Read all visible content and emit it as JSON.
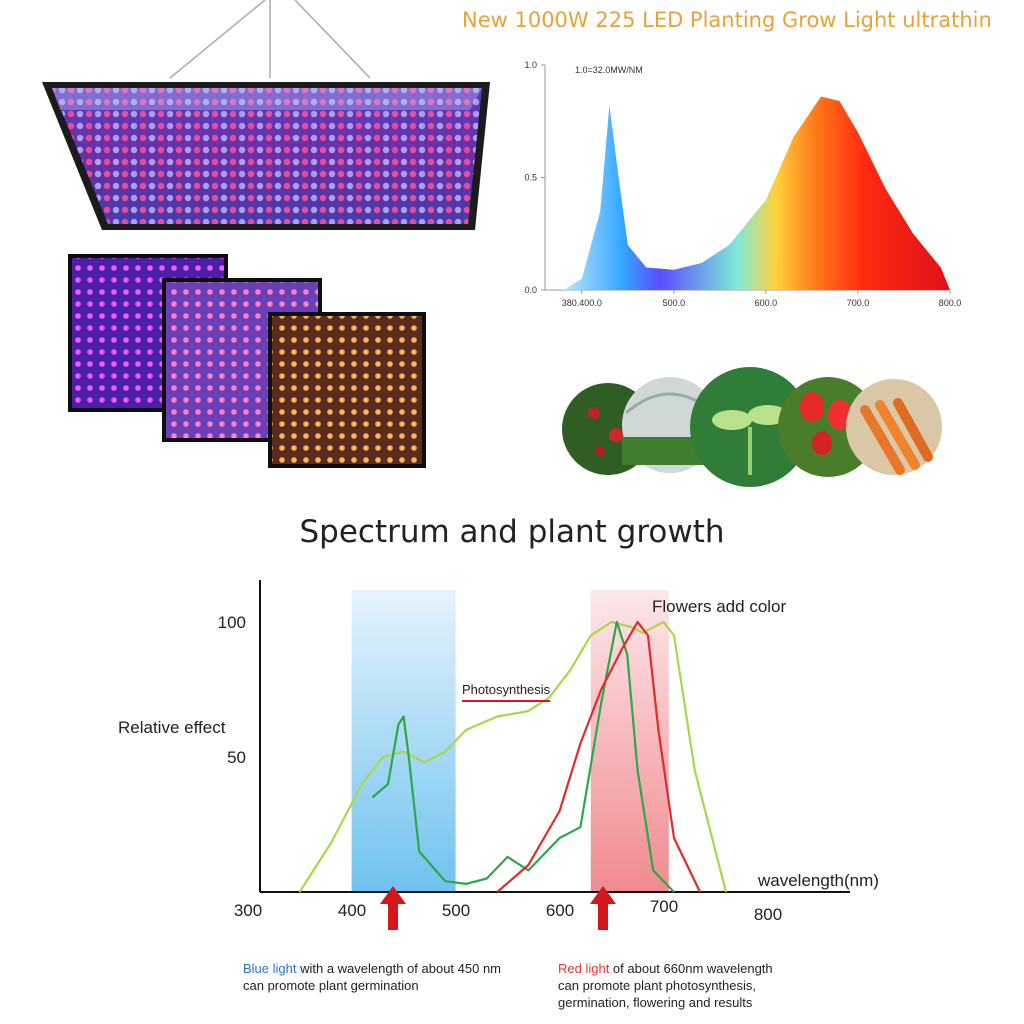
{
  "header": {
    "title": "New 1000W 225 LED Planting Grow Light  ultrathin"
  },
  "chart_data": [
    {
      "type": "area",
      "annotation": "1.0=32.0MW/NM",
      "y_ticks": [
        "1.0",
        "0.5",
        "0.0"
      ],
      "x_ticks": [
        "380.400.0",
        "500.0",
        "600.0",
        "700.0",
        "800.0"
      ],
      "x": [
        380,
        400,
        420,
        430,
        440,
        450,
        470,
        500,
        530,
        560,
        600,
        630,
        660,
        680,
        700,
        730,
        760,
        790,
        800
      ],
      "values": [
        0.0,
        0.05,
        0.35,
        0.82,
        0.5,
        0.2,
        0.1,
        0.09,
        0.12,
        0.2,
        0.4,
        0.68,
        0.86,
        0.84,
        0.7,
        0.45,
        0.25,
        0.1,
        0.0
      ],
      "ylim": [
        0,
        1.0
      ],
      "xlim": [
        360,
        800
      ]
    },
    {
      "type": "line",
      "title": "Spectrum and plant growth",
      "ylabel": "Relative effect",
      "xlabel": "wavelength(nm)",
      "y_ticks": [
        "100",
        "50"
      ],
      "x_ticks": [
        "300",
        "400",
        "500",
        "600",
        "700",
        "800"
      ],
      "annotations": [
        "Flowers add color",
        "Photosynthesis"
      ],
      "ylim": [
        0,
        100
      ],
      "xlim": [
        300,
        850
      ],
      "series": [
        {
          "values_x": [
            340,
            370,
            400,
            420,
            440,
            460,
            480,
            500,
            530,
            560,
            580,
            600,
            620,
            640,
            660,
            670,
            690,
            700,
            720,
            750
          ],
          "values": [
            0,
            18,
            40,
            50,
            52,
            48,
            52,
            60,
            65,
            67,
            72,
            82,
            95,
            100,
            98,
            96,
            100,
            95,
            45,
            0
          ]
        },
        {
          "values_x": [
            410,
            425,
            435,
            440,
            445,
            455,
            480,
            500,
            520,
            540,
            560,
            590,
            610,
            630,
            645,
            655,
            665,
            680,
            700
          ],
          "values": [
            35,
            40,
            62,
            65,
            50,
            15,
            4,
            3,
            5,
            13,
            8,
            20,
            24,
            70,
            100,
            88,
            45,
            8,
            0
          ]
        },
        {
          "values_x": [
            530,
            560,
            590,
            610,
            630,
            650,
            665,
            675,
            685,
            700,
            725
          ],
          "values": [
            0,
            10,
            30,
            55,
            75,
            90,
            100,
            95,
            60,
            20,
            0
          ]
        }
      ]
    }
  ],
  "panels": {
    "photo_circles": [
      "strawberry",
      "greenhouse",
      "seedling",
      "tulips",
      "vegetables"
    ]
  },
  "notes": {
    "blue_highlight": "Blue light",
    "blue_rest": " with a wavelength of about 450 nm",
    "blue_line2": "can promote plant germination",
    "red_highlight": "Red light",
    "red_rest": " of about 660nm wavelength",
    "red_line2": "can promote plant photosynthesis,",
    "red_line3": "germination, flowering and results"
  }
}
